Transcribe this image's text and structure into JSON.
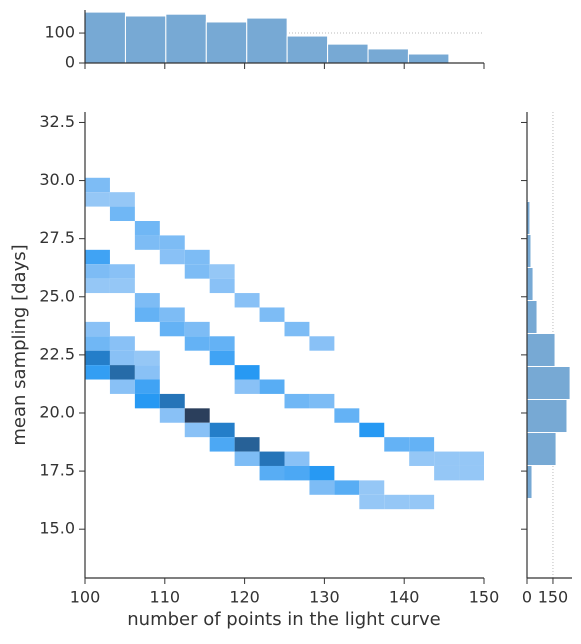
{
  "chart_data": [
    {
      "type": "hist2d",
      "xlabel": "number of points in the light curve",
      "ylabel": "mean sampling [days]",
      "xlim": [
        100,
        150
      ],
      "ylim": [
        12.9,
        32.95
      ],
      "xticks": [
        100,
        110,
        120,
        130,
        140,
        150
      ],
      "yticks": [
        {
          "value": 15,
          "label": "15.0"
        },
        {
          "value": 17.5,
          "label": "17.5"
        },
        {
          "value": 20,
          "label": "20.0"
        },
        {
          "value": 22.5,
          "label": "22.5"
        },
        {
          "value": 25,
          "label": "25.0"
        },
        {
          "value": 27.5,
          "label": "27.5"
        },
        {
          "value": 30,
          "label": "30.0"
        },
        {
          "value": 32.5,
          "label": "32.5"
        }
      ],
      "binwidth": [
        3.125,
        0.62
      ],
      "colors": [
        "#c6dbf7",
        "#2196f3",
        "#2b3f5c"
      ],
      "cells": [
        [
          100,
          29.5,
          12
        ],
        [
          100,
          28.88,
          8
        ],
        [
          103.125,
          28.88,
          8
        ],
        [
          103.125,
          28.26,
          14
        ],
        [
          106.25,
          27.64,
          14
        ],
        [
          106.25,
          27.02,
          12
        ],
        [
          109.375,
          27.02,
          12
        ],
        [
          109.375,
          26.4,
          10
        ],
        [
          112.5,
          26.4,
          12
        ],
        [
          112.5,
          25.78,
          12
        ],
        [
          115.625,
          25.78,
          8
        ],
        [
          115.625,
          25.16,
          10
        ],
        [
          118.75,
          24.54,
          10
        ],
        [
          121.875,
          23.92,
          12
        ],
        [
          125,
          23.3,
          12
        ],
        [
          128.125,
          22.68,
          10
        ],
        [
          100,
          26.4,
          22
        ],
        [
          100,
          25.78,
          12
        ],
        [
          100,
          25.16,
          8
        ],
        [
          103.125,
          25.78,
          10
        ],
        [
          103.125,
          25.16,
          8
        ],
        [
          106.25,
          24.54,
          12
        ],
        [
          106.25,
          23.92,
          16
        ],
        [
          109.375,
          23.92,
          12
        ],
        [
          109.375,
          23.3,
          16
        ],
        [
          112.5,
          23.3,
          12
        ],
        [
          112.5,
          22.68,
          16
        ],
        [
          115.625,
          22.68,
          16
        ],
        [
          115.625,
          22.06,
          22
        ],
        [
          118.75,
          21.44,
          26
        ],
        [
          121.875,
          20.82,
          18
        ],
        [
          125,
          20.2,
          14
        ],
        [
          128.125,
          20.2,
          12
        ],
        [
          131.25,
          19.58,
          16
        ],
        [
          134.375,
          18.96,
          26
        ],
        [
          137.5,
          18.34,
          16
        ],
        [
          140.625,
          18.34,
          16
        ],
        [
          140.625,
          17.72,
          8
        ],
        [
          143.75,
          17.72,
          8
        ],
        [
          146.875,
          17.72,
          8
        ],
        [
          143.75,
          17.1,
          8
        ],
        [
          146.875,
          17.1,
          8
        ],
        [
          100,
          23.3,
          10
        ],
        [
          100,
          22.68,
          14
        ],
        [
          100,
          22.06,
          32
        ],
        [
          100,
          21.44,
          24
        ],
        [
          103.125,
          22.68,
          10
        ],
        [
          103.125,
          22.06,
          10
        ],
        [
          103.125,
          21.44,
          36
        ],
        [
          103.125,
          20.82,
          10
        ],
        [
          106.25,
          22.06,
          8
        ],
        [
          106.25,
          21.44,
          10
        ],
        [
          106.25,
          20.82,
          22
        ],
        [
          106.25,
          20.2,
          26
        ],
        [
          109.375,
          20.2,
          34
        ],
        [
          109.375,
          19.58,
          10
        ],
        [
          112.5,
          19.58,
          45
        ],
        [
          112.5,
          18.96,
          10
        ],
        [
          115.625,
          18.96,
          32
        ],
        [
          115.625,
          18.34,
          20
        ],
        [
          118.75,
          20.82,
          10
        ],
        [
          118.75,
          18.34,
          38
        ],
        [
          118.75,
          17.72,
          12
        ],
        [
          121.875,
          17.72,
          34
        ],
        [
          121.875,
          17.1,
          18
        ],
        [
          125,
          17.72,
          10
        ],
        [
          125,
          17.1,
          20
        ],
        [
          128.125,
          17.1,
          26
        ],
        [
          128.125,
          16.48,
          12
        ],
        [
          131.25,
          16.48,
          18
        ],
        [
          134.375,
          16.48,
          8
        ],
        [
          134.375,
          15.86,
          8
        ],
        [
          137.5,
          15.86,
          8
        ],
        [
          140.625,
          15.86,
          8
        ]
      ]
    },
    {
      "type": "histogram",
      "orientation": "vertical",
      "color": "#77a9d4",
      "bins": [
        100,
        105.07,
        110.13,
        115.2,
        120.27,
        125.33,
        130.4,
        135.47,
        140.53,
        145.6
      ],
      "values": [
        170,
        157,
        163,
        137,
        150,
        90,
        63,
        47,
        30
      ],
      "ylim": [
        0,
        177
      ],
      "yticks": [
        0,
        100
      ],
      "grid": true
    },
    {
      "type": "histogram",
      "orientation": "horizontal",
      "color": "#77a9d4",
      "bins": [
        14.9,
        16.32,
        17.74,
        19.16,
        20.58,
        22.0,
        23.42,
        24.84,
        26.26,
        27.68,
        29.1,
        30.52,
        31.94
      ],
      "values": [
        1,
        29,
        168,
        231,
        249,
        162,
        58,
        35,
        23,
        17,
        6,
        3
      ],
      "xlim": [
        0,
        260
      ],
      "xticks": [
        0,
        150
      ],
      "grid": true
    }
  ]
}
